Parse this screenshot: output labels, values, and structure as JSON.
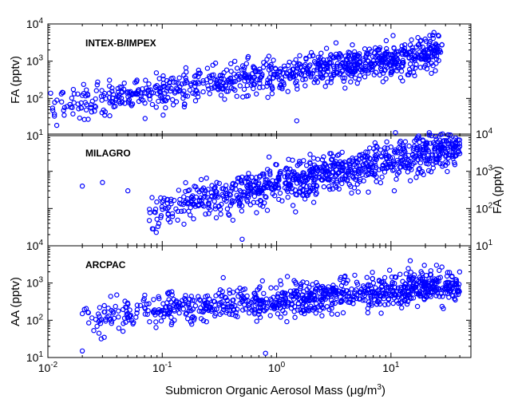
{
  "figure": {
    "xlabel_main": "Submicron Organic Aerosol Mass (",
    "xlabel_unit": "μg/m",
    "xlabel_sup": "3",
    "xlabel_close": ")"
  },
  "chart_data": [
    {
      "type": "scatter",
      "panel_label": "INTEX-B/IMPEX",
      "ylabel": "FA (pptv)",
      "y_axis_side": "left",
      "xlim": [
        0.01,
        50
      ],
      "ylim": [
        10,
        10000
      ],
      "xscale": "log",
      "yscale": "log",
      "x_ticks": [
        "10^-2",
        "10^-1",
        "10^0",
        "10^1"
      ],
      "y_ticks": [
        "10^1",
        "10^2",
        "10^3",
        "10^4"
      ],
      "marker": "open-circle",
      "color": "#0000ff",
      "trend": {
        "x_range": [
          0.01,
          28
        ],
        "y_start": 60,
        "y_end": 1800,
        "scatter_decades": 0.3
      },
      "points": [
        [
          0.012,
          90
        ],
        [
          0.02,
          120
        ],
        [
          0.05,
          150
        ],
        [
          0.1,
          200
        ],
        [
          0.3,
          300
        ],
        [
          1.0,
          450
        ],
        [
          3.0,
          900
        ],
        [
          10.0,
          1500
        ],
        [
          20.0,
          2000
        ],
        [
          25.0,
          2400
        ],
        [
          8.0,
          2300
        ],
        [
          1.5,
          25
        ]
      ]
    },
    {
      "type": "scatter",
      "panel_label": "MILAGRO",
      "ylabel": "FA (pptv)",
      "y_axis_side": "right",
      "xlim": [
        0.01,
        50
      ],
      "ylim": [
        10,
        10000
      ],
      "xscale": "log",
      "yscale": "log",
      "x_ticks": [
        "10^-2",
        "10^-1",
        "10^0",
        "10^1"
      ],
      "y_ticks": [
        "10^1",
        "10^2",
        "10^3",
        "10^4"
      ],
      "marker": "open-circle",
      "color": "#0000ff",
      "trend": {
        "x_range": [
          0.07,
          40
        ],
        "y_start": 80,
        "y_end": 5000,
        "scatter_decades": 0.35
      },
      "points": [
        [
          0.02,
          400
        ],
        [
          0.03,
          500
        ],
        [
          0.05,
          300
        ],
        [
          0.1,
          150
        ],
        [
          0.3,
          500
        ],
        [
          0.5,
          700
        ],
        [
          1.0,
          1500
        ],
        [
          3.0,
          3000
        ],
        [
          10.0,
          4500
        ],
        [
          20.0,
          5000
        ],
        [
          40.0,
          3000
        ],
        [
          0.5,
          15
        ]
      ]
    },
    {
      "type": "scatter",
      "panel_label": "ARCPAC",
      "ylabel": "AA (pptv)",
      "y_axis_side": "left",
      "xlim": [
        0.01,
        50
      ],
      "ylim": [
        10,
        10000
      ],
      "xscale": "log",
      "yscale": "log",
      "x_ticks": [
        "10^-2",
        "10^-1",
        "10^0",
        "10^1"
      ],
      "y_ticks": [
        "10^1",
        "10^2",
        "10^3",
        "10^4"
      ],
      "marker": "open-circle",
      "color": "#0000ff",
      "trend": {
        "x_range": [
          0.02,
          40
        ],
        "y_start": 130,
        "y_end": 900,
        "scatter_decades": 0.3
      },
      "points": [
        [
          0.02,
          150
        ],
        [
          0.02,
          15
        ],
        [
          0.05,
          120
        ],
        [
          0.1,
          180
        ],
        [
          0.3,
          200
        ],
        [
          1.0,
          300
        ],
        [
          3.0,
          500
        ],
        [
          10.0,
          700
        ],
        [
          20.0,
          1000
        ],
        [
          25.0,
          3000
        ],
        [
          15.0,
          400
        ],
        [
          0.8,
          13
        ]
      ]
    }
  ]
}
